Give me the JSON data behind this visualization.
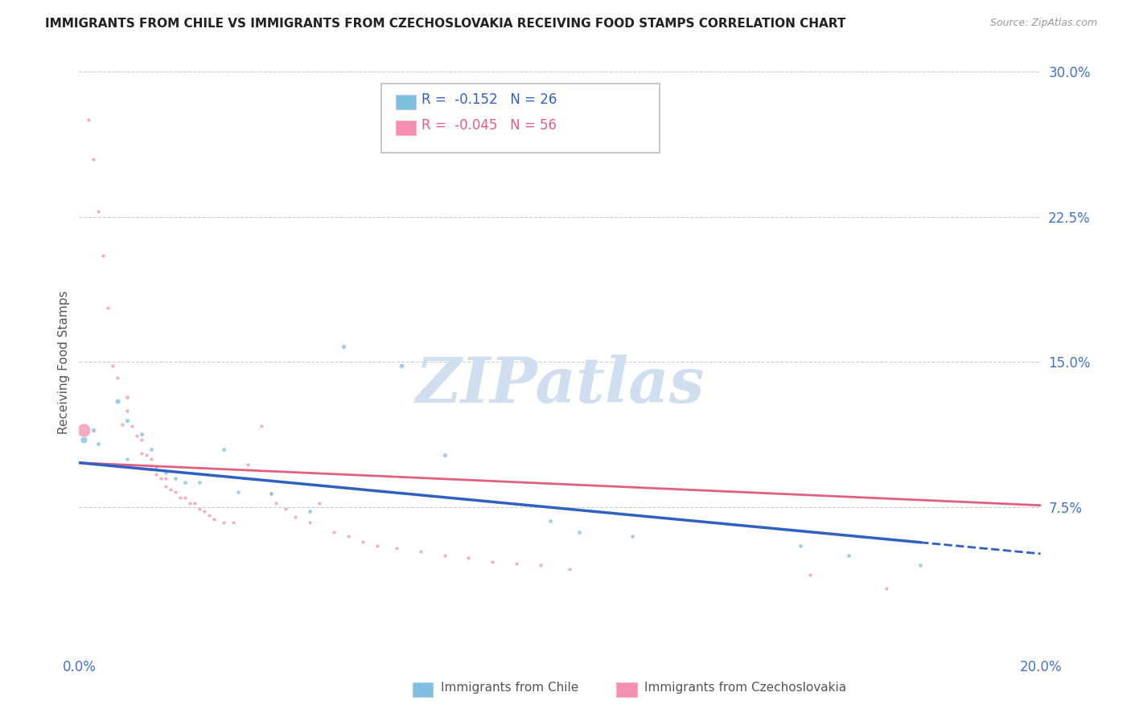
{
  "title": "IMMIGRANTS FROM CHILE VS IMMIGRANTS FROM CZECHOSLOVAKIA RECEIVING FOOD STAMPS CORRELATION CHART",
  "source": "Source: ZipAtlas.com",
  "ylabel": "Receiving Food Stamps",
  "xlim": [
    0.0,
    0.2
  ],
  "ylim": [
    0.0,
    0.3
  ],
  "chile_color": "#7fbfdf",
  "czech_color": "#f48fb1",
  "chile_line_color": "#3060c0",
  "czech_line_color": "#e06080",
  "chile_R": -0.152,
  "chile_N": 26,
  "czech_R": -0.045,
  "czech_N": 56,
  "chile_reg": [
    0.098,
    0.051
  ],
  "czech_reg": [
    0.098,
    0.076
  ],
  "chile_points": [
    [
      0.001,
      0.11,
      200
    ],
    [
      0.003,
      0.115,
      100
    ],
    [
      0.004,
      0.108,
      80
    ],
    [
      0.008,
      0.13,
      120
    ],
    [
      0.01,
      0.12,
      90
    ],
    [
      0.01,
      0.1,
      70
    ],
    [
      0.013,
      0.113,
      85
    ],
    [
      0.015,
      0.105,
      80
    ],
    [
      0.016,
      0.096,
      70
    ],
    [
      0.018,
      0.093,
      75
    ],
    [
      0.02,
      0.09,
      70
    ],
    [
      0.022,
      0.088,
      75
    ],
    [
      0.025,
      0.088,
      70
    ],
    [
      0.03,
      0.105,
      80
    ],
    [
      0.033,
      0.083,
      70
    ],
    [
      0.04,
      0.082,
      75
    ],
    [
      0.048,
      0.073,
      80
    ],
    [
      0.055,
      0.158,
      90
    ],
    [
      0.067,
      0.148,
      100
    ],
    [
      0.076,
      0.102,
      85
    ],
    [
      0.098,
      0.068,
      75
    ],
    [
      0.104,
      0.062,
      75
    ],
    [
      0.115,
      0.06,
      70
    ],
    [
      0.15,
      0.055,
      75
    ],
    [
      0.16,
      0.05,
      70
    ],
    [
      0.175,
      0.045,
      70
    ]
  ],
  "czech_points": [
    [
      0.001,
      0.115,
      800
    ],
    [
      0.002,
      0.275,
      65
    ],
    [
      0.003,
      0.255,
      60
    ],
    [
      0.004,
      0.228,
      58
    ],
    [
      0.005,
      0.205,
      58
    ],
    [
      0.006,
      0.178,
      58
    ],
    [
      0.007,
      0.148,
      58
    ],
    [
      0.008,
      0.142,
      60
    ],
    [
      0.009,
      0.118,
      60
    ],
    [
      0.01,
      0.132,
      75
    ],
    [
      0.01,
      0.125,
      62
    ],
    [
      0.011,
      0.117,
      58
    ],
    [
      0.012,
      0.112,
      58
    ],
    [
      0.013,
      0.11,
      60
    ],
    [
      0.013,
      0.103,
      58
    ],
    [
      0.014,
      0.102,
      58
    ],
    [
      0.015,
      0.1,
      62
    ],
    [
      0.015,
      0.095,
      58
    ],
    [
      0.016,
      0.092,
      58
    ],
    [
      0.017,
      0.09,
      58
    ],
    [
      0.018,
      0.09,
      60
    ],
    [
      0.018,
      0.086,
      58
    ],
    [
      0.019,
      0.084,
      58
    ],
    [
      0.02,
      0.083,
      58
    ],
    [
      0.021,
      0.08,
      60
    ],
    [
      0.022,
      0.08,
      58
    ],
    [
      0.023,
      0.077,
      58
    ],
    [
      0.024,
      0.077,
      60
    ],
    [
      0.025,
      0.074,
      58
    ],
    [
      0.026,
      0.073,
      58
    ],
    [
      0.027,
      0.071,
      58
    ],
    [
      0.028,
      0.069,
      58
    ],
    [
      0.03,
      0.067,
      60
    ],
    [
      0.032,
      0.067,
      58
    ],
    [
      0.035,
      0.097,
      60
    ],
    [
      0.038,
      0.117,
      58
    ],
    [
      0.04,
      0.082,
      58
    ],
    [
      0.041,
      0.077,
      58
    ],
    [
      0.043,
      0.074,
      60
    ],
    [
      0.045,
      0.07,
      58
    ],
    [
      0.048,
      0.067,
      58
    ],
    [
      0.05,
      0.077,
      60
    ],
    [
      0.053,
      0.062,
      58
    ],
    [
      0.056,
      0.06,
      58
    ],
    [
      0.059,
      0.057,
      60
    ],
    [
      0.062,
      0.055,
      58
    ],
    [
      0.066,
      0.054,
      58
    ],
    [
      0.071,
      0.052,
      58
    ],
    [
      0.076,
      0.05,
      58
    ],
    [
      0.081,
      0.049,
      60
    ],
    [
      0.086,
      0.047,
      58
    ],
    [
      0.091,
      0.046,
      58
    ],
    [
      0.096,
      0.045,
      58
    ],
    [
      0.102,
      0.043,
      58
    ],
    [
      0.152,
      0.04,
      60
    ],
    [
      0.168,
      0.033,
      58
    ]
  ],
  "grid_color": "#cccccc",
  "axis_label_color": "#4472c4",
  "watermark_color": "#d0dff0"
}
